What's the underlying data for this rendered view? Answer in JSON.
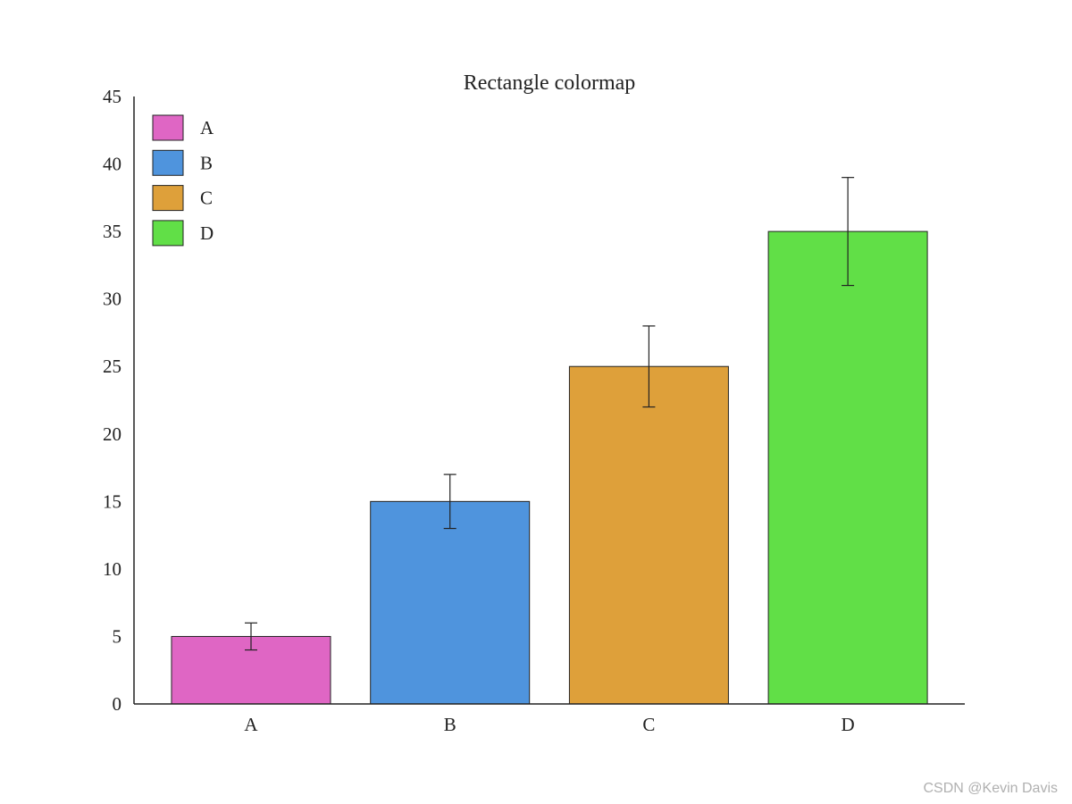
{
  "chart_data": {
    "type": "bar",
    "title": "Rectangle colormap",
    "xlabel": "",
    "ylabel": "",
    "categories": [
      "A",
      "B",
      "C",
      "D"
    ],
    "values": [
      5,
      15,
      25,
      35
    ],
    "errors": [
      1,
      2,
      3,
      4
    ],
    "colors": [
      "#df66c4",
      "#4f94dd",
      "#dea03a",
      "#61df47"
    ],
    "ylim": [
      0,
      45
    ],
    "yticks": [
      0,
      5,
      10,
      15,
      20,
      25,
      30,
      35,
      40,
      45
    ],
    "grid": false,
    "legend": {
      "position": "top-left",
      "entries": [
        "A",
        "B",
        "C",
        "D"
      ]
    }
  },
  "watermark": "CSDN @Kevin  Davis"
}
